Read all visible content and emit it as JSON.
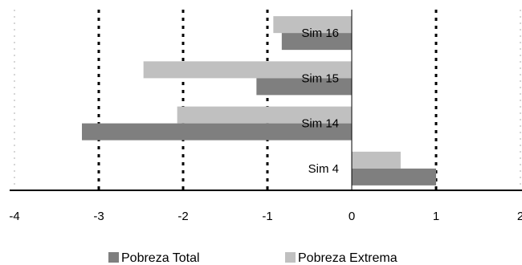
{
  "chart_data": {
    "type": "bar",
    "orientation": "horizontal",
    "title": "",
    "xlabel": "",
    "ylabel": "",
    "xlim": [
      -4,
      2
    ],
    "x_ticks": [
      -4,
      -3,
      -2,
      -1,
      0,
      1,
      2
    ],
    "x_tick_labels": [
      "-4",
      "-3",
      "-2",
      "-1",
      "0",
      "1",
      "2"
    ],
    "grid": "dotted vertical lines at each x tick",
    "categories": [
      "Sim 16",
      "Sim 15",
      "Sim 14",
      "Sim 4"
    ],
    "series": [
      {
        "name": "Pobreza Total",
        "color": "#7f7f7f",
        "values": [
          -0.83,
          -1.13,
          -3.2,
          1.0
        ]
      },
      {
        "name": "Pobreza Extrema",
        "color": "#c0c0c0",
        "values": [
          -0.93,
          -2.47,
          -2.07,
          0.58
        ]
      }
    ],
    "legend": {
      "position": "bottom"
    }
  }
}
